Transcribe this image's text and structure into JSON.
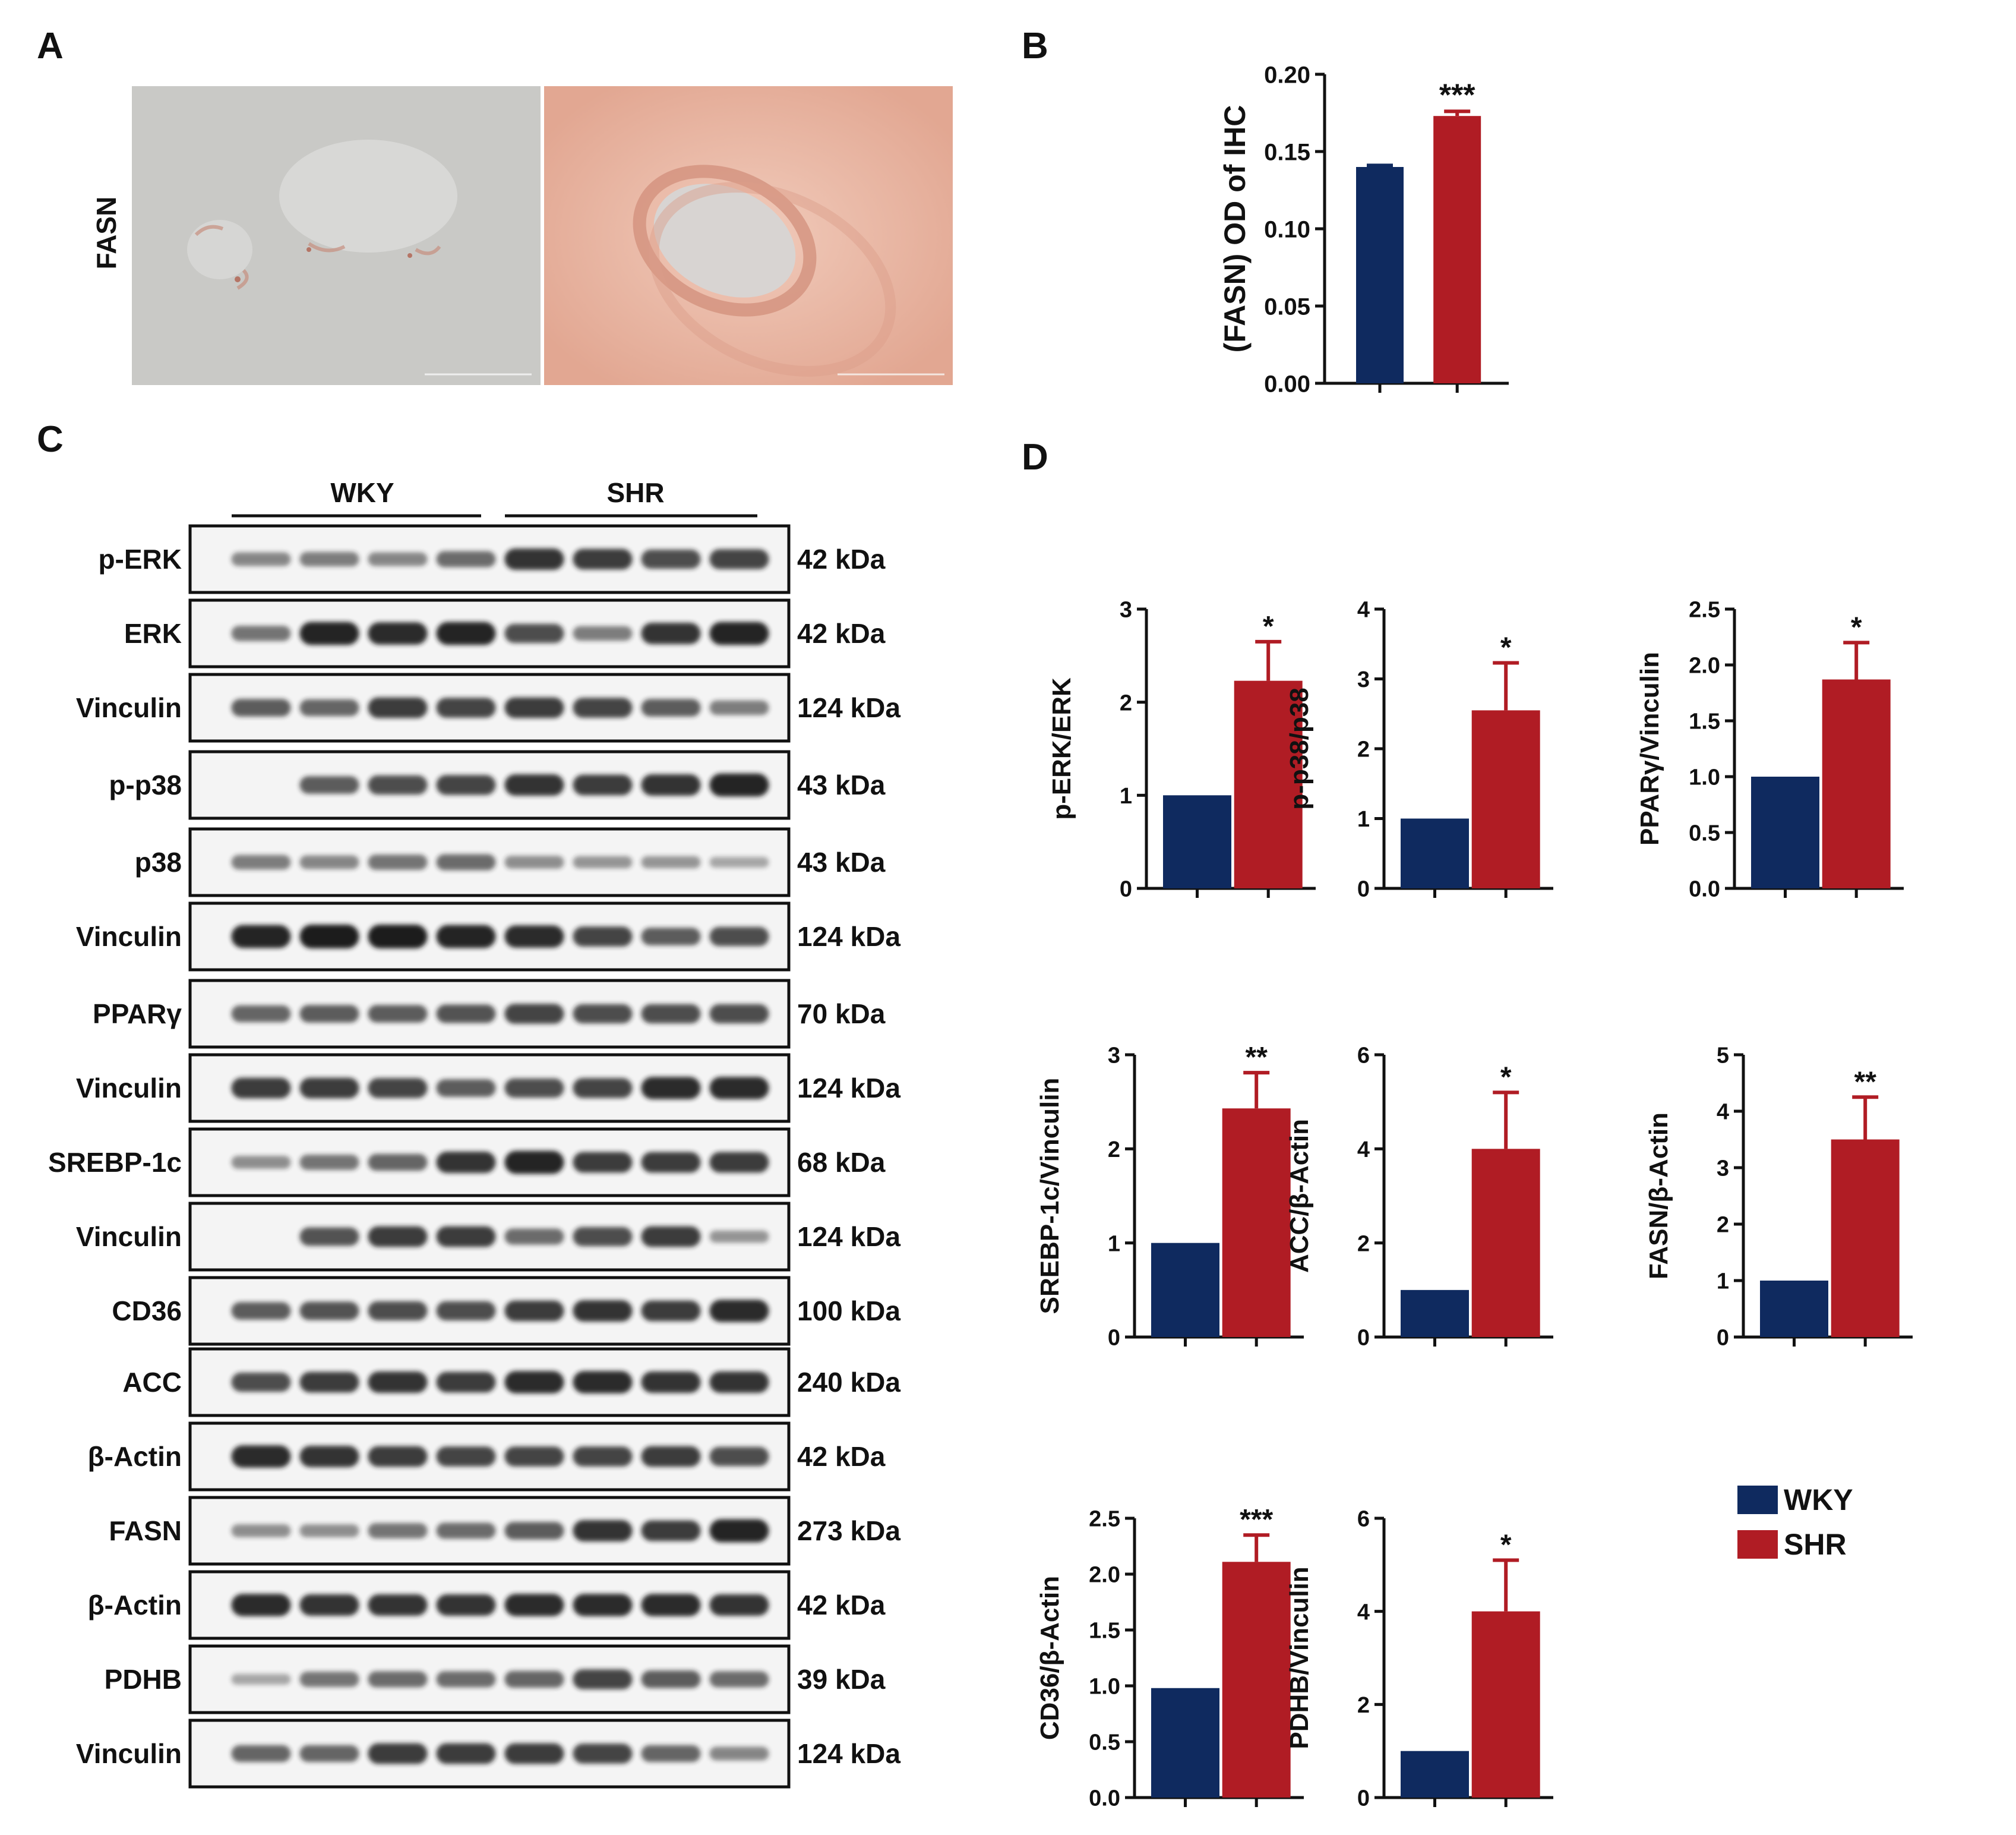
{
  "panels": {
    "A": "A",
    "B": "B",
    "C": "C",
    "D": "D"
  },
  "ihc": {
    "row_label": "FASN"
  },
  "colors": {
    "wky": "#0f2a5f",
    "shr": "#b01c24",
    "band": "#1a1a1a",
    "ihc_wky_bg": "#c9c9c6",
    "ihc_shr_bg": "#e8b9a8"
  },
  "western_blot": {
    "groups": [
      "WKY",
      "SHR"
    ],
    "rows": [
      {
        "label": "p-ERK",
        "kda": "42 kDa",
        "intensity": [
          0.35,
          0.4,
          0.35,
          0.5,
          0.85,
          0.8,
          0.7,
          0.75
        ]
      },
      {
        "label": "ERK",
        "kda": "42 kDa",
        "intensity": [
          0.45,
          0.95,
          0.9,
          0.95,
          0.7,
          0.4,
          0.85,
          0.95
        ]
      },
      {
        "label": "Vinculin",
        "kda": "124 kDa",
        "intensity": [
          0.6,
          0.55,
          0.8,
          0.75,
          0.8,
          0.75,
          0.6,
          0.4
        ]
      },
      {
        "label": "p-p38",
        "kda": "43 kDa",
        "intensity": [
          0.0,
          0.6,
          0.7,
          0.75,
          0.85,
          0.8,
          0.85,
          0.95
        ]
      },
      {
        "label": "p38",
        "kda": "43 kDa",
        "intensity": [
          0.4,
          0.35,
          0.45,
          0.5,
          0.3,
          0.25,
          0.25,
          0.15
        ]
      },
      {
        "label": "Vinculin",
        "kda": "124 kDa",
        "intensity": [
          0.95,
          1.0,
          1.0,
          0.95,
          0.9,
          0.75,
          0.6,
          0.7
        ]
      },
      {
        "label": "PPARγ",
        "kda": "70 kDa",
        "intensity": [
          0.55,
          0.6,
          0.6,
          0.65,
          0.75,
          0.7,
          0.7,
          0.7
        ]
      },
      {
        "label": "Vinculin",
        "kda": "124 kDa",
        "intensity": [
          0.8,
          0.8,
          0.75,
          0.6,
          0.7,
          0.75,
          0.9,
          0.9
        ]
      },
      {
        "label": "SREBP-1c",
        "kda": "68 kDa",
        "intensity": [
          0.3,
          0.45,
          0.55,
          0.85,
          0.95,
          0.8,
          0.8,
          0.8
        ]
      },
      {
        "label": "Vinculin",
        "kda": "124 kDa",
        "intensity": [
          0.0,
          0.65,
          0.8,
          0.8,
          0.5,
          0.7,
          0.8,
          0.25
        ]
      },
      {
        "label": "CD36",
        "kda": "100 kDa",
        "intensity": [
          0.6,
          0.65,
          0.7,
          0.7,
          0.8,
          0.85,
          0.8,
          0.9
        ]
      },
      {
        "label": "ACC",
        "kda": "240 kDa",
        "intensity": [
          0.7,
          0.8,
          0.85,
          0.8,
          0.9,
          0.9,
          0.85,
          0.85
        ]
      },
      {
        "label": "β-Actin",
        "kda": "42 kDa",
        "intensity": [
          0.9,
          0.85,
          0.8,
          0.75,
          0.75,
          0.75,
          0.8,
          0.7
        ]
      },
      {
        "label": "FASN",
        "kda": "273 kDa",
        "intensity": [
          0.3,
          0.3,
          0.45,
          0.5,
          0.6,
          0.85,
          0.8,
          0.95
        ]
      },
      {
        "label": "β-Actin",
        "kda": "42 kDa",
        "intensity": [
          0.9,
          0.85,
          0.85,
          0.85,
          0.9,
          0.9,
          0.9,
          0.85
        ]
      },
      {
        "label": "PDHB",
        "kda": "39 kDa",
        "intensity": [
          0.15,
          0.45,
          0.5,
          0.5,
          0.55,
          0.75,
          0.6,
          0.5
        ]
      },
      {
        "label": "Vinculin",
        "kda": "124 kDa",
        "intensity": [
          0.55,
          0.55,
          0.8,
          0.8,
          0.8,
          0.75,
          0.55,
          0.35
        ]
      }
    ]
  },
  "legend": {
    "items": [
      {
        "label": "WKY",
        "color": "#0f2a5f"
      },
      {
        "label": "SHR",
        "color": "#b01c24"
      }
    ]
  },
  "chart_data": [
    {
      "panel": "B",
      "type": "bar",
      "categories": [
        "WKY",
        "SHR"
      ],
      "values": [
        0.14,
        0.173
      ],
      "errors": [
        0.001,
        0.003
      ],
      "significance": "***",
      "ylabel": "(FASN) OD of IHC",
      "ylim": [
        0,
        0.2
      ],
      "yticks": [
        "0.00",
        "0.05",
        "0.10",
        "0.15",
        "0.20"
      ]
    },
    {
      "panel": "D",
      "type": "bar",
      "categories": [
        "WKY",
        "SHR"
      ],
      "values": [
        1.0,
        2.23
      ],
      "errors": [
        0,
        0.42
      ],
      "significance": "*",
      "ylabel": "p-ERK/ERK",
      "ylim": [
        0,
        3
      ],
      "yticks": [
        "0",
        "1",
        "2",
        "3"
      ]
    },
    {
      "panel": "D",
      "type": "bar",
      "categories": [
        "WKY",
        "SHR"
      ],
      "values": [
        1.0,
        2.55
      ],
      "errors": [
        0,
        0.68
      ],
      "significance": "*",
      "ylabel": "p-p38/p38",
      "ylim": [
        0,
        4
      ],
      "yticks": [
        "0",
        "1",
        "2",
        "3",
        "4"
      ]
    },
    {
      "panel": "D",
      "type": "bar",
      "categories": [
        "WKY",
        "SHR"
      ],
      "values": [
        1.0,
        1.87
      ],
      "errors": [
        0,
        0.33
      ],
      "significance": "*",
      "ylabel": "PPARγ/Vinculin",
      "ylim": [
        0,
        2.5
      ],
      "yticks": [
        "0.0",
        "0.5",
        "1.0",
        "1.5",
        "2.0",
        "2.5"
      ]
    },
    {
      "panel": "D",
      "type": "bar",
      "categories": [
        "WKY",
        "SHR"
      ],
      "values": [
        1.0,
        2.43
      ],
      "errors": [
        0,
        0.38
      ],
      "significance": "**",
      "ylabel": "SREBP-1c/Vinculin",
      "ylim": [
        0,
        3
      ],
      "yticks": [
        "0",
        "1",
        "2",
        "3"
      ]
    },
    {
      "panel": "D",
      "type": "bar",
      "categories": [
        "WKY",
        "SHR"
      ],
      "values": [
        1.0,
        4.0
      ],
      "errors": [
        0,
        1.2
      ],
      "significance": "*",
      "ylabel": "ACC/β-Actin",
      "ylim": [
        0,
        6
      ],
      "yticks": [
        "0",
        "2",
        "4",
        "6"
      ]
    },
    {
      "panel": "D",
      "type": "bar",
      "categories": [
        "WKY",
        "SHR"
      ],
      "values": [
        1.0,
        3.5
      ],
      "errors": [
        0,
        0.75
      ],
      "significance": "**",
      "ylabel": "FASN/β-Actin",
      "ylim": [
        0,
        5
      ],
      "yticks": [
        "0",
        "1",
        "2",
        "3",
        "4",
        "5"
      ]
    },
    {
      "panel": "D",
      "type": "bar",
      "categories": [
        "WKY",
        "SHR"
      ],
      "values": [
        0.98,
        2.11
      ],
      "errors": [
        0,
        0.24
      ],
      "significance": "***",
      "ylabel": "CD36/β-Actin",
      "ylim": [
        0,
        2.5
      ],
      "yticks": [
        "0.0",
        "0.5",
        "1.0",
        "1.5",
        "2.0",
        "2.5"
      ]
    },
    {
      "panel": "D",
      "type": "bar",
      "categories": [
        "WKY",
        "SHR"
      ],
      "values": [
        1.0,
        4.0
      ],
      "errors": [
        0,
        1.1
      ],
      "significance": "*",
      "ylabel": "PDHB/Vinculin",
      "ylim": [
        0,
        6
      ],
      "yticks": [
        "0",
        "2",
        "4",
        "6"
      ]
    }
  ]
}
